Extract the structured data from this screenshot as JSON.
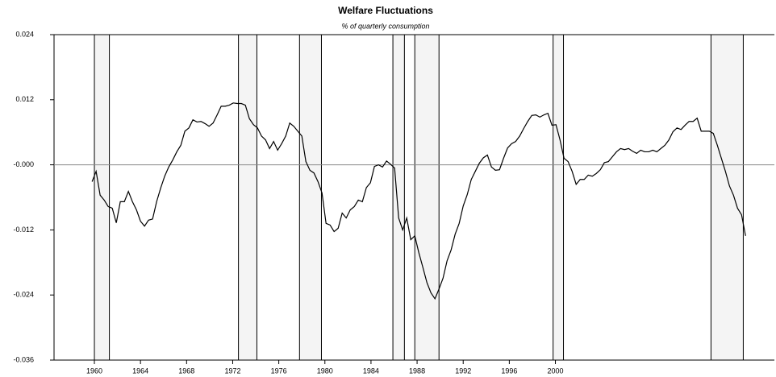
{
  "chart_data": {
    "type": "line",
    "title": "Welfare Fluctuations",
    "subtitle": "% of quarterly consumption",
    "xlim": [
      1956.5,
      2019
    ],
    "xticks": [
      1960,
      1964,
      1968,
      1972,
      1976,
      1980,
      1984,
      1988,
      1992,
      1996,
      2000
    ],
    "ylim": [
      -0.036,
      0.024
    ],
    "yticks": [
      -0.036,
      -0.024,
      -0.012,
      {
        "value": 0,
        "label": "-0.000"
      },
      0.012,
      0.024
    ],
    "zero_line": true,
    "shaded_periods": [
      [
        1960,
        1961.3
      ],
      [
        1972.5,
        1974.1
      ],
      [
        1977.8,
        1979.7
      ],
      [
        1985.9,
        1986.9
      ],
      [
        1987.8,
        1989.9
      ],
      [
        1999.8,
        2000.7
      ],
      [
        2013.5,
        2016.3
      ]
    ],
    "shade_color": "#f4f4f4",
    "x": [
      1959.8,
      1960.15,
      1960.5,
      1960.85,
      1961.2,
      1961.55,
      1961.9,
      1962.25,
      1962.6,
      1962.95,
      1963.3,
      1963.65,
      1964,
      1964.35,
      1964.7,
      1965.05,
      1965.4,
      1965.75,
      1966.1,
      1966.45,
      1966.8,
      1967.15,
      1967.5,
      1967.85,
      1968.2,
      1968.55,
      1968.9,
      1969.25,
      1969.6,
      1969.95,
      1970.3,
      1970.65,
      1971,
      1971.35,
      1971.7,
      1972.05,
      1972.4,
      1972.75,
      1973.1,
      1973.45,
      1973.8,
      1974.15,
      1974.5,
      1974.85,
      1975.2,
      1975.55,
      1975.9,
      1976.25,
      1976.6,
      1976.95,
      1977.3,
      1977.65,
      1978,
      1978.35,
      1978.7,
      1979.05,
      1979.4,
      1979.75,
      1980.1,
      1980.45,
      1980.8,
      1981.15,
      1981.5,
      1981.85,
      1982.2,
      1982.55,
      1982.9,
      1983.25,
      1983.6,
      1983.95,
      1984.3,
      1984.65,
      1985,
      1985.35,
      1985.7,
      1986.05,
      1986.4,
      1986.75,
      1987.1,
      1987.45,
      1987.8,
      1988.15,
      1988.5,
      1988.85,
      1989.2,
      1989.55,
      1989.9,
      1990.25,
      1990.6,
      1990.95,
      1991.3,
      1991.65,
      1992,
      1992.35,
      1992.7,
      1993.05,
      1993.4,
      1993.75,
      1994.1,
      1994.45,
      1994.8,
      1995.15,
      1995.5,
      1995.85,
      1996.2,
      1996.55,
      1996.9,
      1997.25,
      1997.6,
      1997.95,
      1998.3,
      1998.65,
      1999,
      1999.35,
      1999.7,
      2000.05,
      2000.4,
      2000.75,
      2001.1,
      2001.45,
      2001.8,
      2002.15,
      2002.5,
      2002.85,
      2003.2,
      2003.55,
      2003.9,
      2004.25,
      2004.6,
      2004.95,
      2005.3,
      2005.65,
      2006,
      2006.35,
      2006.7,
      2007.05,
      2007.4,
      2007.75,
      2008.1,
      2008.45,
      2008.8,
      2009.15,
      2009.5,
      2009.85,
      2010.2,
      2010.55,
      2010.9,
      2011.25,
      2011.6,
      2011.95,
      2012.3,
      2012.65,
      2013,
      2013.35,
      2013.7,
      2014.05,
      2014.4,
      2014.75,
      2015.1,
      2015.45,
      2015.8,
      2016.15,
      2016.5
    ],
    "series": [
      {
        "color": "#000000",
        "values": [
          -0.0031,
          -0.0012,
          -0.0056,
          -0.0065,
          -0.0077,
          -0.008,
          -0.0107,
          -0.0068,
          -0.0068,
          -0.0049,
          -0.0068,
          -0.0083,
          -0.0104,
          -0.0113,
          -0.0102,
          -0.01,
          -0.0068,
          -0.0043,
          -0.0021,
          -0.0004,
          0.0009,
          0.0024,
          0.0036,
          0.0062,
          0.0068,
          0.0083,
          0.0079,
          0.008,
          0.0076,
          0.0071,
          0.0077,
          0.0092,
          0.0108,
          0.0108,
          0.011,
          0.0114,
          0.0113,
          0.0113,
          0.011,
          0.0085,
          0.0074,
          0.0068,
          0.0053,
          0.0046,
          0.003,
          0.0043,
          0.0027,
          0.0039,
          0.0053,
          0.0077,
          0.0071,
          0.0062,
          0.0053,
          0.0006,
          -0.001,
          -0.0015,
          -0.0031,
          -0.0052,
          -0.0108,
          -0.0111,
          -0.0123,
          -0.0117,
          -0.0089,
          -0.0098,
          -0.0083,
          -0.0077,
          -0.0065,
          -0.0068,
          -0.0042,
          -0.0033,
          -0.0003,
          0,
          -0.0004,
          0.0007,
          0.0001,
          -0.0006,
          -0.0098,
          -0.012,
          -0.0098,
          -0.0138,
          -0.0131,
          -0.0162,
          -0.0189,
          -0.0217,
          -0.0236,
          -0.0247,
          -0.0229,
          -0.0209,
          -0.0177,
          -0.0157,
          -0.0128,
          -0.0108,
          -0.0076,
          -0.0055,
          -0.0027,
          -0.0012,
          0.0003,
          0.0013,
          0.0018,
          -0.0004,
          -0.001,
          -0.0009,
          0.0012,
          0.0031,
          0.0039,
          0.0043,
          0.0053,
          0.0067,
          0.008,
          0.0091,
          0.0092,
          0.0088,
          0.0092,
          0.0095,
          0.0073,
          0.0074,
          0.0046,
          0.0012,
          0.0006,
          -0.0012,
          -0.0036,
          -0.0027,
          -0.0027,
          -0.0019,
          -0.0021,
          -0.0016,
          -0.0009,
          0.0004,
          0.0006,
          0.0015,
          0.0024,
          0.003,
          0.0028,
          0.003,
          0.0025,
          0.0021,
          0.0027,
          0.0024,
          0.0024,
          0.0027,
          0.0024,
          0.003,
          0.0036,
          0.0046,
          0.0061,
          0.0068,
          0.0065,
          0.0073,
          0.008,
          0.008,
          0.0086,
          0.0062,
          0.0062,
          0.0062,
          0.0058,
          0.0036,
          0.0012,
          -0.0012,
          -0.0039,
          -0.0056,
          -0.008,
          -0.0092,
          -0.0131
        ]
      }
    ]
  }
}
